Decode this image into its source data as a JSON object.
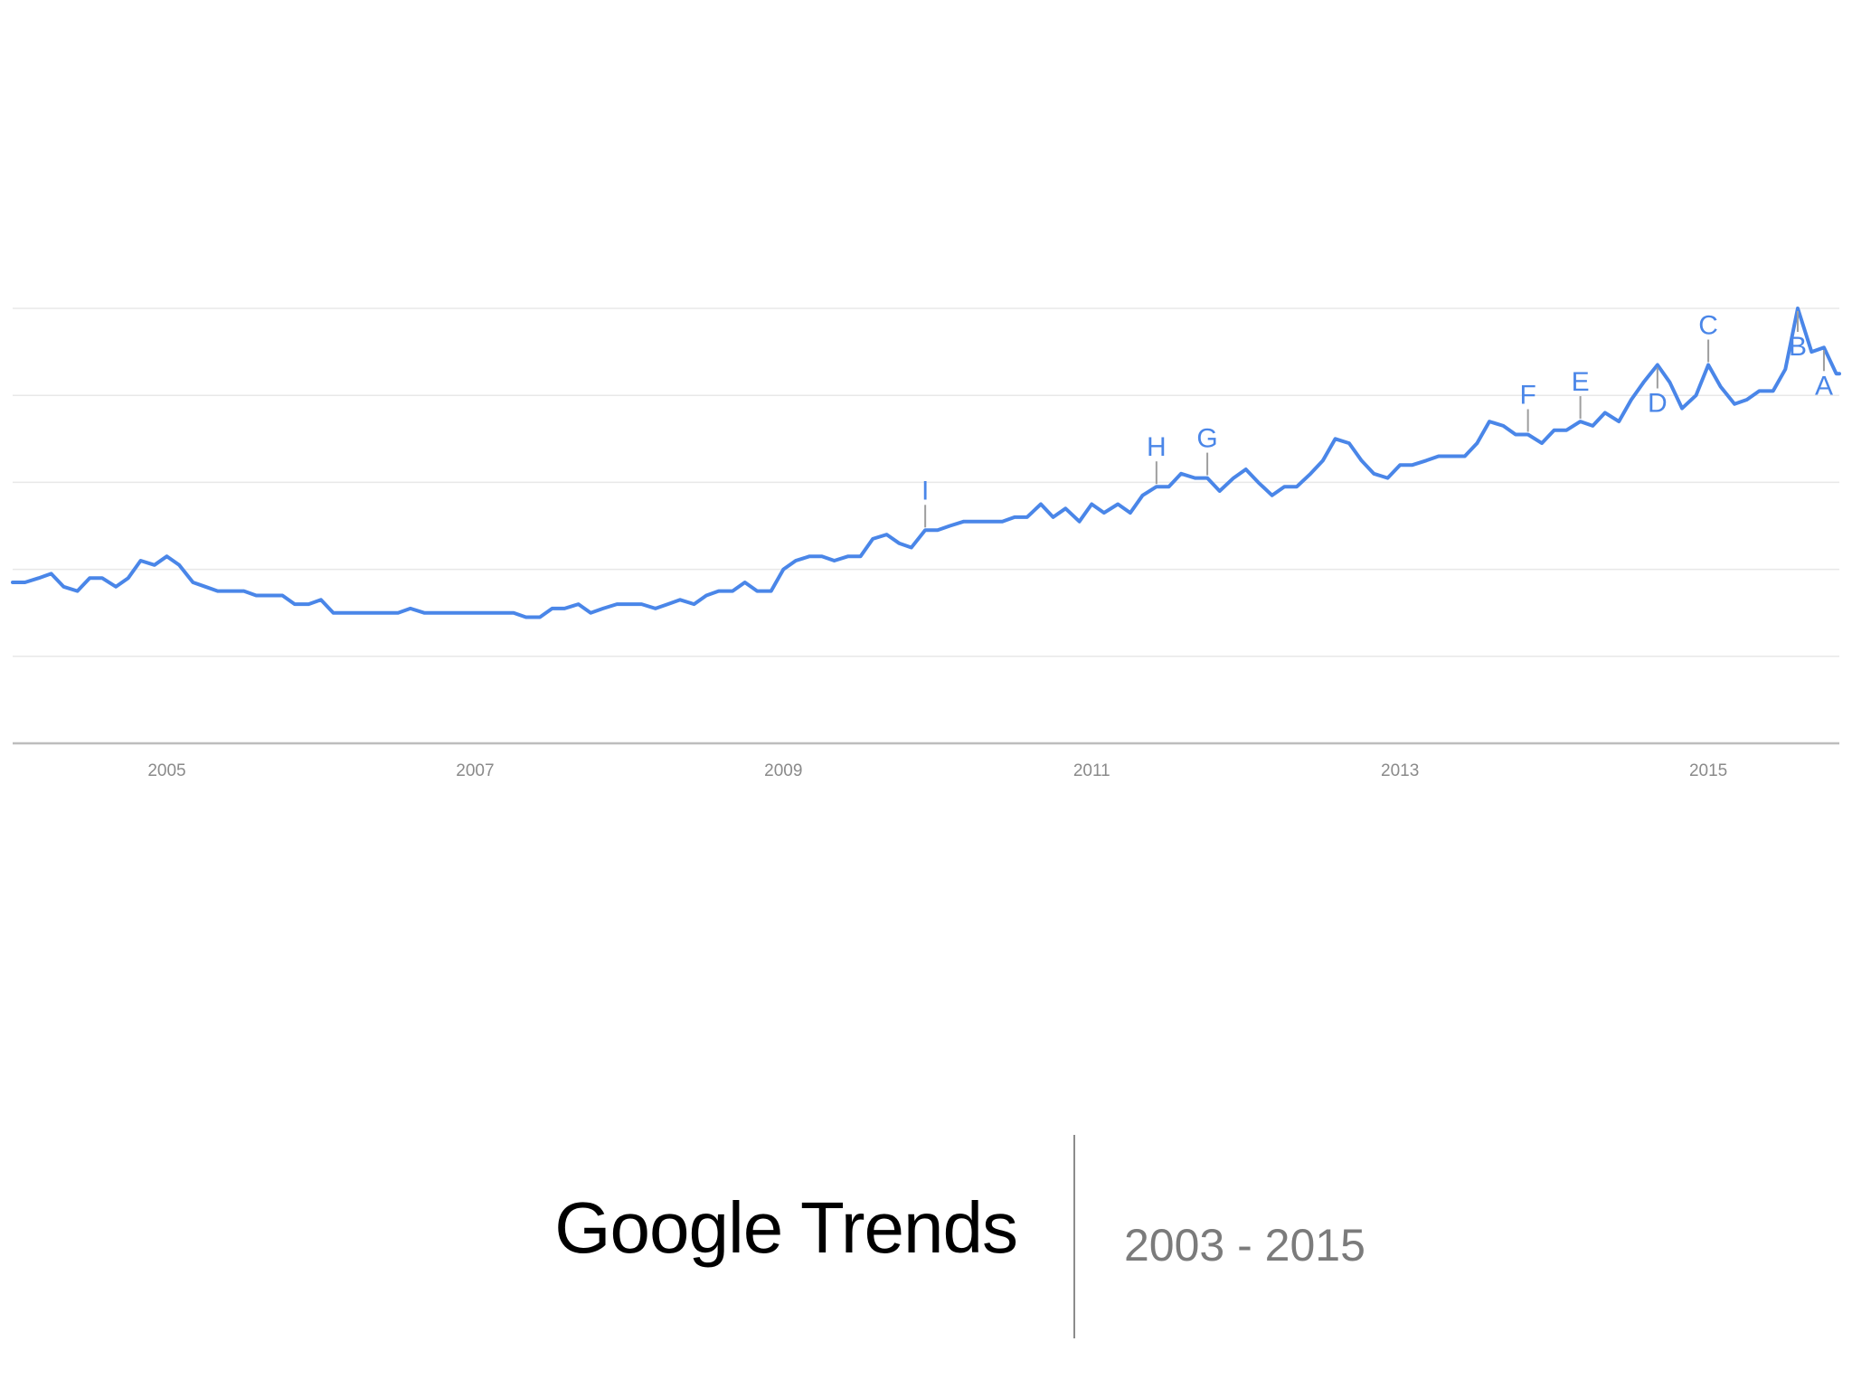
{
  "footer": {
    "title": "Google Trends",
    "range": "2003 - 2015"
  },
  "colors": {
    "line": "#4a86e8",
    "grid": "#e8e8e8",
    "axis": "#bdbdbd",
    "marker_stem": "#9e9e9e"
  },
  "chart_data": {
    "type": "line",
    "title": "",
    "xlabel": "",
    "ylabel": "",
    "grid": true,
    "legend": "none",
    "xlim": [
      2004.0,
      2015.85
    ],
    "ylim": [
      0,
      100
    ],
    "x_ticks": [
      {
        "value": 2005,
        "label": "2005"
      },
      {
        "value": 2007,
        "label": "2007"
      },
      {
        "value": 2009,
        "label": "2009"
      },
      {
        "value": 2011,
        "label": "2011"
      },
      {
        "value": 2013,
        "label": "2013"
      },
      {
        "value": 2015,
        "label": "2015"
      }
    ],
    "y_gridlines": [
      20,
      40,
      60,
      80,
      100
    ],
    "series": [
      {
        "values": [
          [
            2004.0,
            37
          ],
          [
            2004.08,
            37
          ],
          [
            2004.17,
            38
          ],
          [
            2004.25,
            39
          ],
          [
            2004.33,
            36
          ],
          [
            2004.42,
            35
          ],
          [
            2004.5,
            38
          ],
          [
            2004.58,
            38
          ],
          [
            2004.67,
            36
          ],
          [
            2004.75,
            38
          ],
          [
            2004.83,
            42
          ],
          [
            2004.92,
            41
          ],
          [
            2005.0,
            43
          ],
          [
            2005.08,
            41
          ],
          [
            2005.17,
            37
          ],
          [
            2005.25,
            36
          ],
          [
            2005.33,
            35
          ],
          [
            2005.42,
            35
          ],
          [
            2005.5,
            35
          ],
          [
            2005.58,
            34
          ],
          [
            2005.67,
            34
          ],
          [
            2005.75,
            34
          ],
          [
            2005.83,
            32
          ],
          [
            2005.92,
            32
          ],
          [
            2006.0,
            33
          ],
          [
            2006.08,
            30
          ],
          [
            2006.17,
            30
          ],
          [
            2006.25,
            30
          ],
          [
            2006.33,
            30
          ],
          [
            2006.42,
            30
          ],
          [
            2006.5,
            30
          ],
          [
            2006.58,
            31
          ],
          [
            2006.67,
            30
          ],
          [
            2006.75,
            30
          ],
          [
            2006.83,
            30
          ],
          [
            2006.92,
            30
          ],
          [
            2007.0,
            30
          ],
          [
            2007.08,
            30
          ],
          [
            2007.17,
            30
          ],
          [
            2007.25,
            30
          ],
          [
            2007.33,
            29
          ],
          [
            2007.42,
            29
          ],
          [
            2007.5,
            31
          ],
          [
            2007.58,
            31
          ],
          [
            2007.67,
            32
          ],
          [
            2007.75,
            30
          ],
          [
            2007.83,
            31
          ],
          [
            2007.92,
            32
          ],
          [
            2008.0,
            32
          ],
          [
            2008.08,
            32
          ],
          [
            2008.17,
            31
          ],
          [
            2008.25,
            32
          ],
          [
            2008.33,
            33
          ],
          [
            2008.42,
            32
          ],
          [
            2008.5,
            34
          ],
          [
            2008.58,
            35
          ],
          [
            2008.67,
            35
          ],
          [
            2008.75,
            37
          ],
          [
            2008.83,
            35
          ],
          [
            2008.92,
            35
          ],
          [
            2009.0,
            40
          ],
          [
            2009.08,
            42
          ],
          [
            2009.17,
            43
          ],
          [
            2009.25,
            43
          ],
          [
            2009.33,
            42
          ],
          [
            2009.42,
            43
          ],
          [
            2009.5,
            43
          ],
          [
            2009.58,
            47
          ],
          [
            2009.67,
            48
          ],
          [
            2009.75,
            46
          ],
          [
            2009.83,
            45
          ],
          [
            2009.92,
            49
          ],
          [
            2010.0,
            49
          ],
          [
            2010.08,
            50
          ],
          [
            2010.17,
            51
          ],
          [
            2010.25,
            51
          ],
          [
            2010.33,
            51
          ],
          [
            2010.42,
            51
          ],
          [
            2010.5,
            52
          ],
          [
            2010.58,
            52
          ],
          [
            2010.67,
            55
          ],
          [
            2010.75,
            52
          ],
          [
            2010.83,
            54
          ],
          [
            2010.92,
            51
          ],
          [
            2011.0,
            55
          ],
          [
            2011.08,
            53
          ],
          [
            2011.17,
            55
          ],
          [
            2011.25,
            53
          ],
          [
            2011.33,
            57
          ],
          [
            2011.42,
            59
          ],
          [
            2011.5,
            59
          ],
          [
            2011.58,
            62
          ],
          [
            2011.67,
            61
          ],
          [
            2011.75,
            61
          ],
          [
            2011.83,
            58
          ],
          [
            2011.92,
            61
          ],
          [
            2012.0,
            63
          ],
          [
            2012.08,
            60
          ],
          [
            2012.17,
            57
          ],
          [
            2012.25,
            59
          ],
          [
            2012.33,
            59
          ],
          [
            2012.42,
            62
          ],
          [
            2012.5,
            65
          ],
          [
            2012.58,
            70
          ],
          [
            2012.67,
            69
          ],
          [
            2012.75,
            65
          ],
          [
            2012.83,
            62
          ],
          [
            2012.92,
            61
          ],
          [
            2013.0,
            64
          ],
          [
            2013.08,
            64
          ],
          [
            2013.17,
            65
          ],
          [
            2013.25,
            66
          ],
          [
            2013.33,
            66
          ],
          [
            2013.42,
            66
          ],
          [
            2013.5,
            69
          ],
          [
            2013.58,
            74
          ],
          [
            2013.67,
            73
          ],
          [
            2013.75,
            71
          ],
          [
            2013.83,
            71
          ],
          [
            2013.92,
            69
          ],
          [
            2014.0,
            72
          ],
          [
            2014.08,
            72
          ],
          [
            2014.17,
            74
          ],
          [
            2014.25,
            73
          ],
          [
            2014.33,
            76
          ],
          [
            2014.42,
            74
          ],
          [
            2014.5,
            79
          ],
          [
            2014.58,
            83
          ],
          [
            2014.67,
            87
          ],
          [
            2014.75,
            83
          ],
          [
            2014.83,
            77
          ],
          [
            2014.92,
            80
          ],
          [
            2015.0,
            87
          ],
          [
            2015.08,
            82
          ],
          [
            2015.17,
            78
          ],
          [
            2015.25,
            79
          ],
          [
            2015.33,
            81
          ],
          [
            2015.42,
            81
          ],
          [
            2015.5,
            86
          ],
          [
            2015.58,
            100
          ],
          [
            2015.67,
            90
          ],
          [
            2015.75,
            91
          ],
          [
            2015.83,
            85
          ],
          [
            2015.85,
            85
          ]
        ]
      }
    ],
    "annotations": [
      {
        "label": "I",
        "x": 2009.92,
        "y": 49,
        "position": "above"
      },
      {
        "label": "H",
        "x": 2011.42,
        "y": 59,
        "position": "above"
      },
      {
        "label": "G",
        "x": 2011.75,
        "y": 61,
        "position": "above"
      },
      {
        "label": "F",
        "x": 2013.83,
        "y": 71,
        "position": "above"
      },
      {
        "label": "E",
        "x": 2014.17,
        "y": 74,
        "position": "above"
      },
      {
        "label": "D",
        "x": 2014.67,
        "y": 87,
        "position": "below"
      },
      {
        "label": "C",
        "x": 2015.0,
        "y": 87,
        "position": "above"
      },
      {
        "label": "B",
        "x": 2015.58,
        "y": 100,
        "position": "below"
      },
      {
        "label": "A",
        "x": 2015.75,
        "y": 91,
        "position": "below"
      }
    ]
  }
}
